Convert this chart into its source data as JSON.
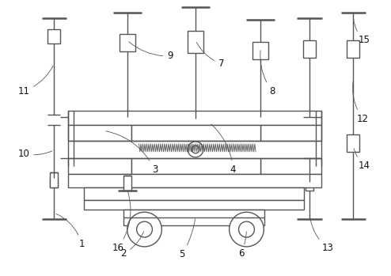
{
  "bg_color": "#ffffff",
  "line_color": "#555555",
  "line_width": 1.0,
  "thick_line": 1.8,
  "fig_width": 4.94,
  "fig_height": 3.49,
  "dpi": 100
}
